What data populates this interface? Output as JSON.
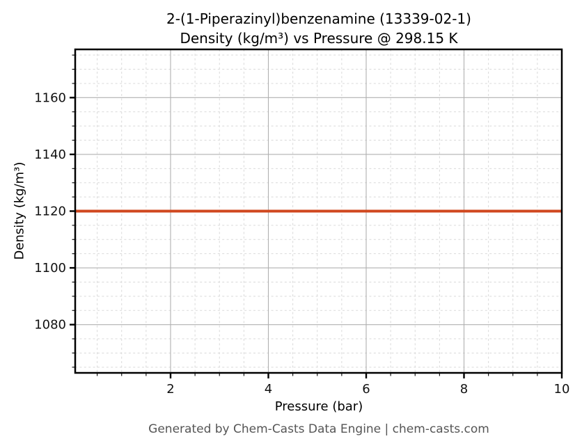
{
  "title": {
    "line1": "2-(1-Piperazinyl)benzenamine (13339-02-1)",
    "line2": "Density (kg/m³) vs Pressure @ 298.15 K"
  },
  "footer": {
    "text": "Generated by Chem-Casts Data Engine | chem-casts.com",
    "color": "#555555"
  },
  "chart_data": {
    "type": "line",
    "title": "2-(1-Piperazinyl)benzenamine (13339-02-1)",
    "subtitle": "Density (kg/m³) vs Pressure @ 298.15 K",
    "xlabel": "Pressure (bar)",
    "ylabel": "Density (kg/m³)",
    "xlim": [
      0.05,
      10
    ],
    "ylim": [
      1063,
      1177
    ],
    "x_major_ticks": [
      2,
      4,
      6,
      8,
      10
    ],
    "x_minor_interval": 0.5,
    "y_major_ticks": [
      1080,
      1100,
      1120,
      1140,
      1160
    ],
    "y_minor_interval": 5,
    "grid": {
      "major_style": "solid",
      "major_color": "#b0b0b0",
      "minor_style": "dashed",
      "minor_color": "#d9d9d9"
    },
    "legend": "none",
    "series": [
      {
        "name": "Density @ 298.15 K",
        "color": "#d0481f",
        "line_width": 4,
        "x": [
          0.05,
          1,
          2,
          3,
          4,
          5,
          6,
          7,
          8,
          9,
          10
        ],
        "y": [
          1120,
          1120,
          1120,
          1120,
          1120,
          1120,
          1120,
          1120,
          1120,
          1120,
          1120
        ]
      }
    ],
    "axis_color": "#000000",
    "tick_label_color": "#111111"
  }
}
